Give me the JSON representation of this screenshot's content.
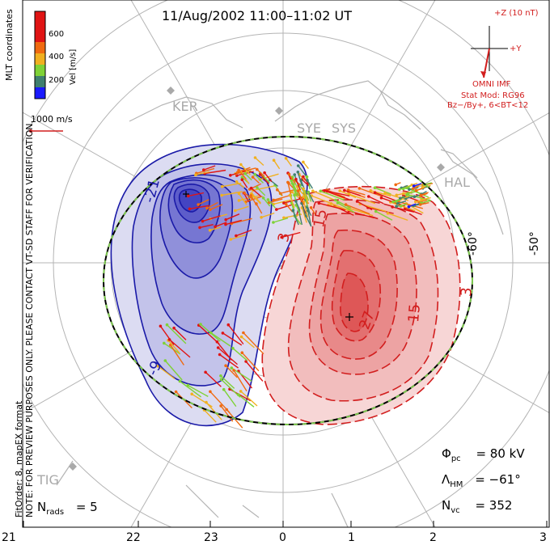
{
  "title": "11/Aug/2002 11:00–11:02 UT",
  "left_side_notes": {
    "line1": "NOTE: FOR PREVIEW PURPOSES ONLY. PLEASE CONTACT VT-SD STAFF FOR VERIFICATION.",
    "line2": "FitOrder: 8, mapEX format"
  },
  "coord_label": "MLT coordinates",
  "color_scale": {
    "label": "Vel [m/s]",
    "ticks": [
      "200",
      "400",
      "600"
    ],
    "colors": [
      "#1a1aff",
      "#3f7f6f",
      "#7fd236",
      "#f0b020",
      "#f06a10",
      "#e01414"
    ]
  },
  "vector_scale_label": "1000 m/s",
  "imf": {
    "axis_z": "+Z (10 nT)",
    "axis_y": "+Y",
    "label": "OMNI IMF"
  },
  "stat_model": {
    "line1": "Stat Mod: RG96",
    "line2": "Bz−/By+, 6<BT<12"
  },
  "stations": [
    "KER",
    "SYE",
    "SYS",
    "HAL",
    "TIG"
  ],
  "latitude_labels": [
    "-60°",
    "-50°"
  ],
  "contour_labels": {
    "neg": [
      "-21",
      "-9"
    ],
    "pos": [
      "15",
      "3",
      "27",
      "15",
      "3"
    ]
  },
  "stats": {
    "phi_symbol": "Φ",
    "phi_sub": "pc",
    "phi_value": "= 80 kV",
    "lambda_symbol": "Λ",
    "lambda_sub": "HM",
    "lambda_value": "= −61°",
    "nvc_symbol": "N",
    "nvc_sub": "vc",
    "nvc_value": "= 352",
    "nrads_symbol": "N",
    "nrads_sub": "rads",
    "nrads_value": "= 5"
  },
  "mlt_ticks": [
    "21",
    "22",
    "23",
    "0",
    "1",
    "2",
    "3"
  ],
  "colors": {
    "negative_contour": "#1a1aa8",
    "positive_contour": "#d21e1e",
    "coastline": "#b4b4b4",
    "grid": "#b4b4b4",
    "boundary_dash": "#7ec850"
  }
}
